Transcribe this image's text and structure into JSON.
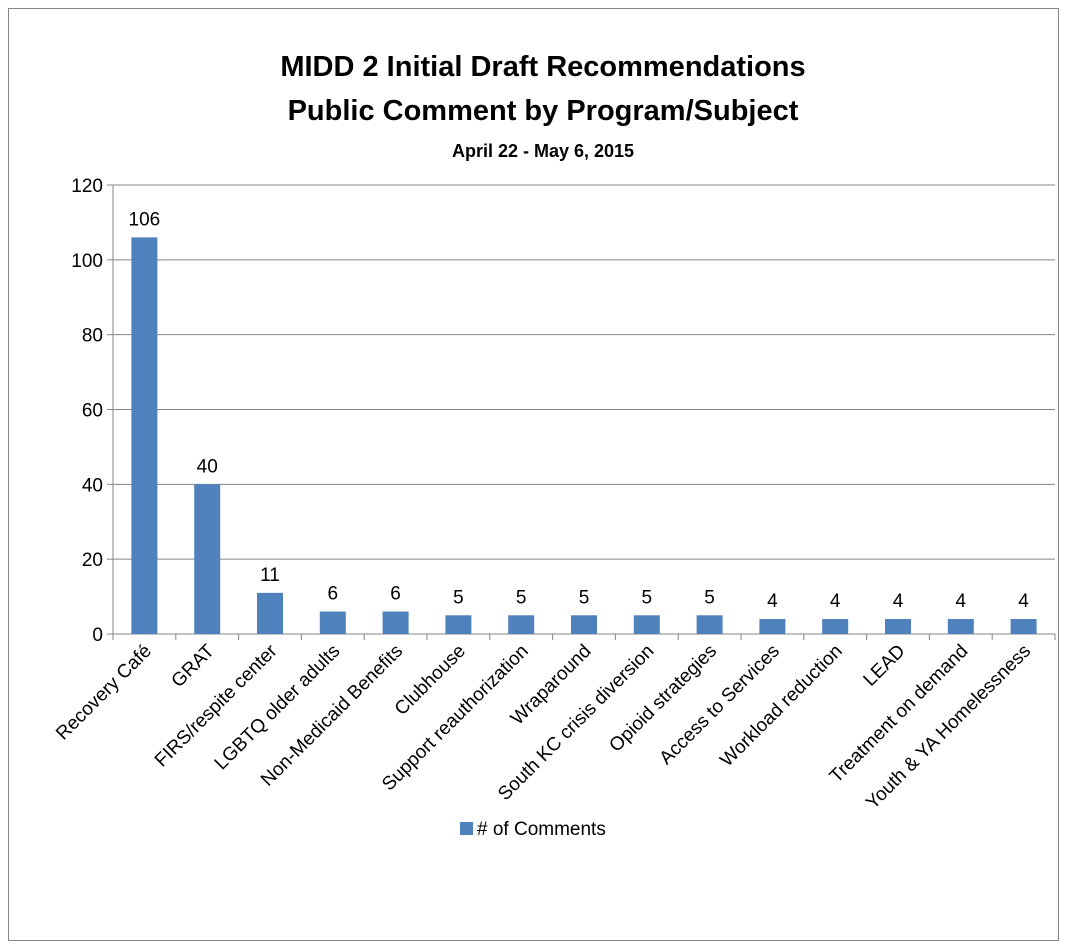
{
  "chart_data": {
    "type": "bar",
    "title": "MIDD 2 Initial Draft Recommendations",
    "subtitle": "Public Comment by Program/Subject",
    "date_range": "April 22 - May 6, 2015",
    "xlabel": "",
    "ylabel": "",
    "ylim": [
      0,
      120
    ],
    "yticks": [
      0,
      20,
      40,
      60,
      80,
      100,
      120
    ],
    "grid": true,
    "legend_position": "bottom",
    "categories": [
      "Recovery Café",
      "GRAT",
      "FIRS/respite center",
      "LGBTQ older adults",
      "Non-Medicaid Benefits",
      "Clubhouse",
      "Support reauthorization",
      "Wraparound",
      "South KC crisis diversion",
      "Opioid strategies",
      "Access to Services",
      "Workload reduction",
      "LEAD",
      "Treatment on demand",
      "Youth & YA Homelessness"
    ],
    "series": [
      {
        "name": "# of Comments",
        "color": "#4f81bd",
        "values": [
          106,
          40,
          11,
          6,
          6,
          5,
          5,
          5,
          5,
          5,
          4,
          4,
          4,
          4,
          4
        ]
      }
    ]
  }
}
